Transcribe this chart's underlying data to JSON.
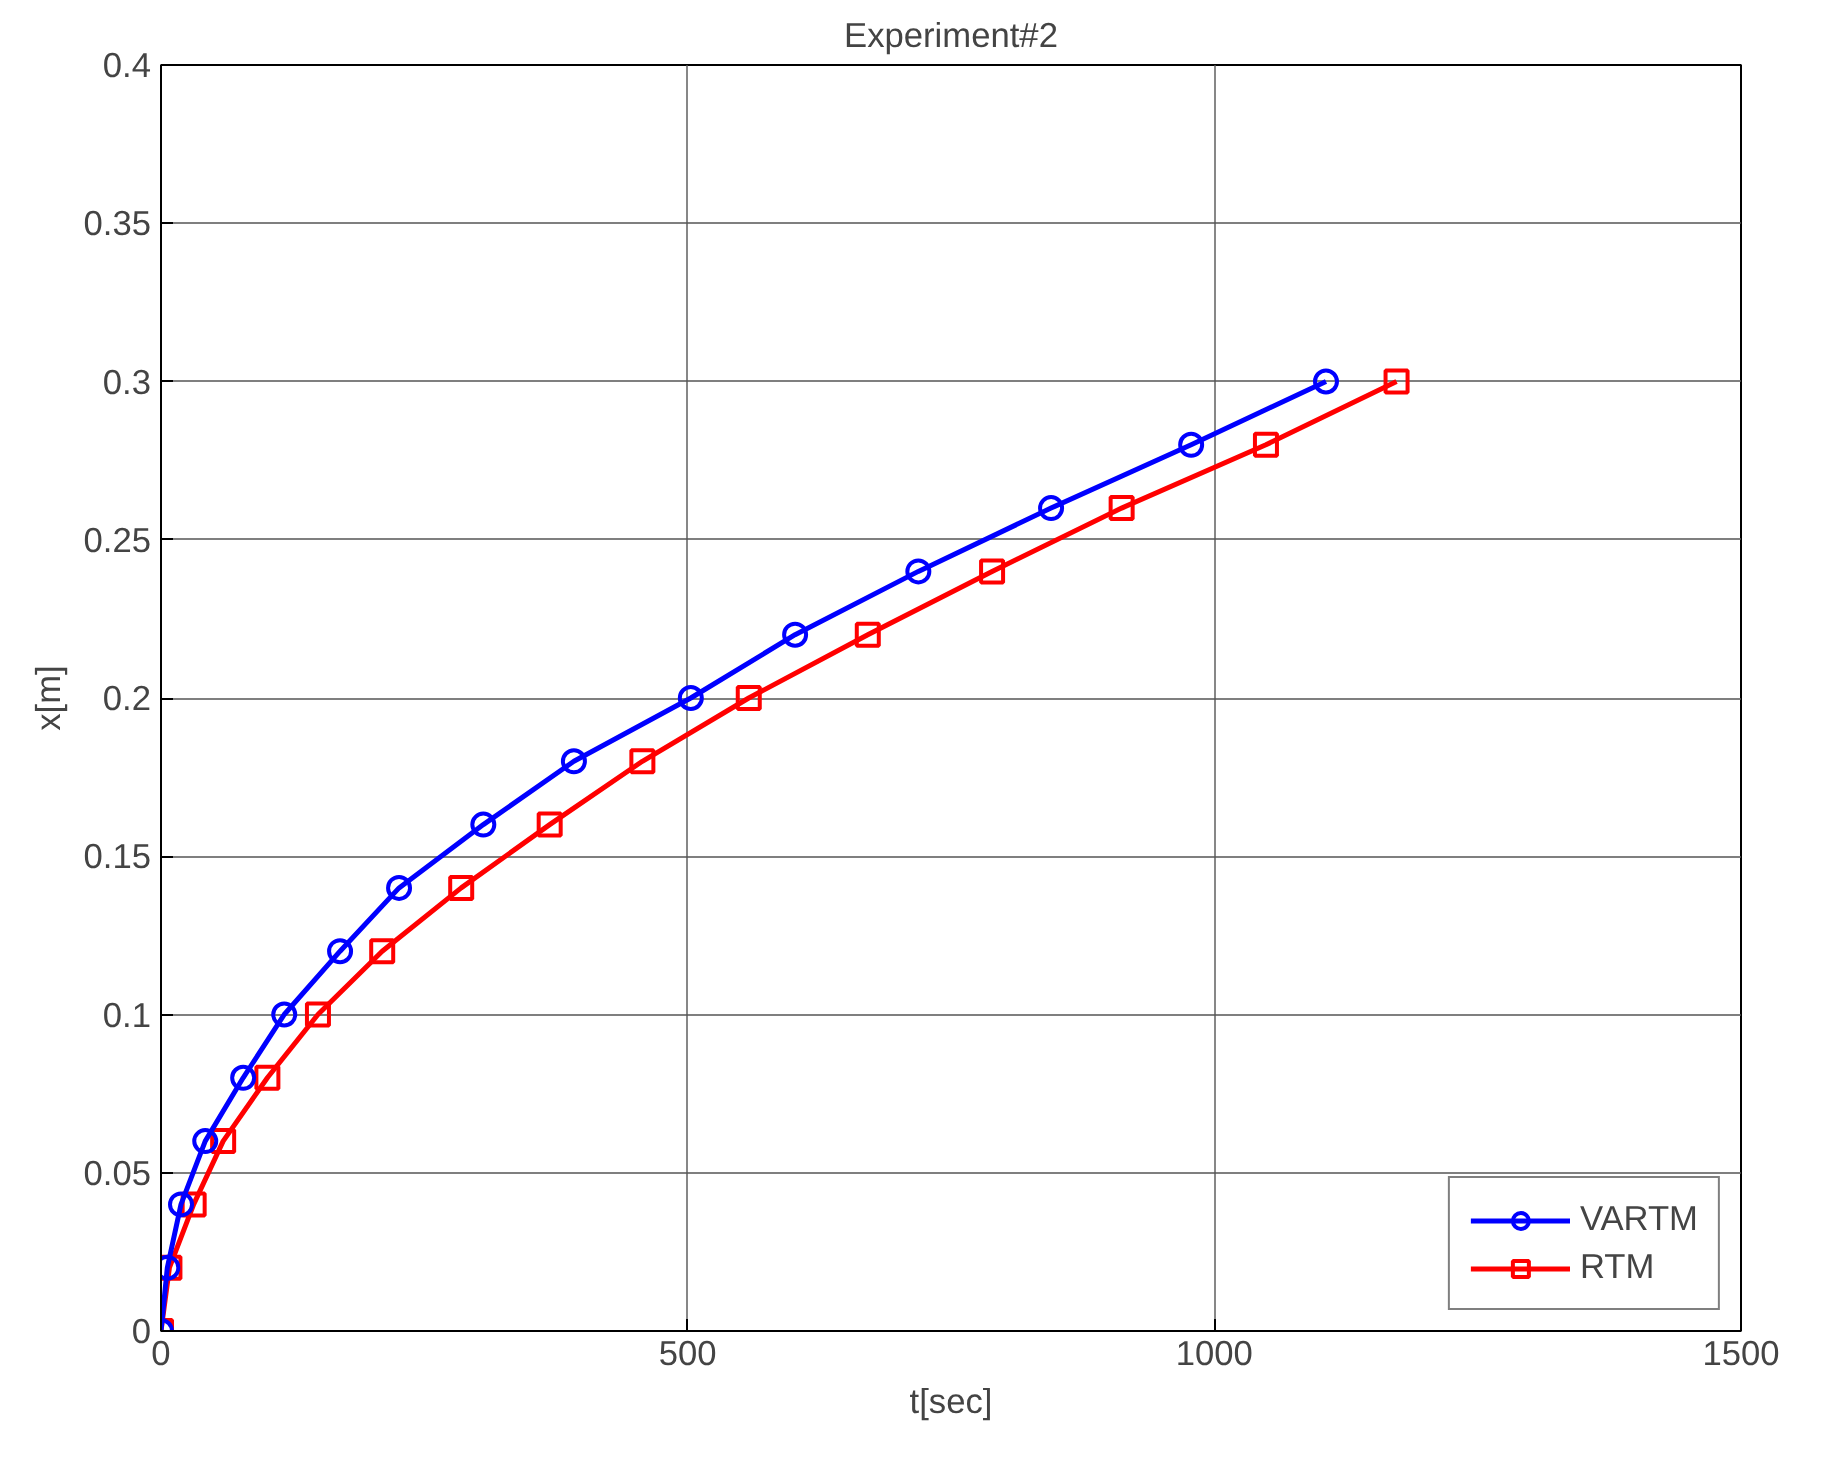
{
  "chart_data": {
    "type": "line",
    "title": "Experiment#2",
    "xlabel": "t[sec]",
    "ylabel": "x[m]",
    "xlim": [
      0,
      1500
    ],
    "ylim": [
      0,
      0.4
    ],
    "xticks": [
      0,
      500,
      1000,
      1500
    ],
    "yticks": [
      0,
      0.05,
      0.1,
      0.15,
      0.2,
      0.25,
      0.3,
      0.35,
      0.4
    ],
    "grid": true,
    "legend": "bottom right",
    "line_style": "solid",
    "series": [
      {
        "name": "VARTM",
        "color": "#0000ff",
        "marker": "circle",
        "x": [
          0,
          6,
          19,
          42,
          78,
          117,
          170,
          226,
          306,
          392,
          503,
          602,
          719,
          845,
          978,
          1106
        ],
        "values": [
          0,
          0.02,
          0.04,
          0.06,
          0.08,
          0.1,
          0.12,
          0.14,
          0.16,
          0.18,
          0.2,
          0.22,
          0.24,
          0.26,
          0.28,
          0.3
        ]
      },
      {
        "name": "RTM",
        "color": "#ff0000",
        "marker": "square",
        "x": [
          0,
          8,
          31,
          59,
          101,
          149,
          210,
          285,
          369,
          457,
          558,
          671,
          789,
          912,
          1049,
          1173
        ],
        "values": [
          0,
          0.02,
          0.04,
          0.06,
          0.08,
          0.1,
          0.12,
          0.14,
          0.16,
          0.18,
          0.2,
          0.22,
          0.24,
          0.26,
          0.28,
          0.3
        ]
      }
    ]
  }
}
